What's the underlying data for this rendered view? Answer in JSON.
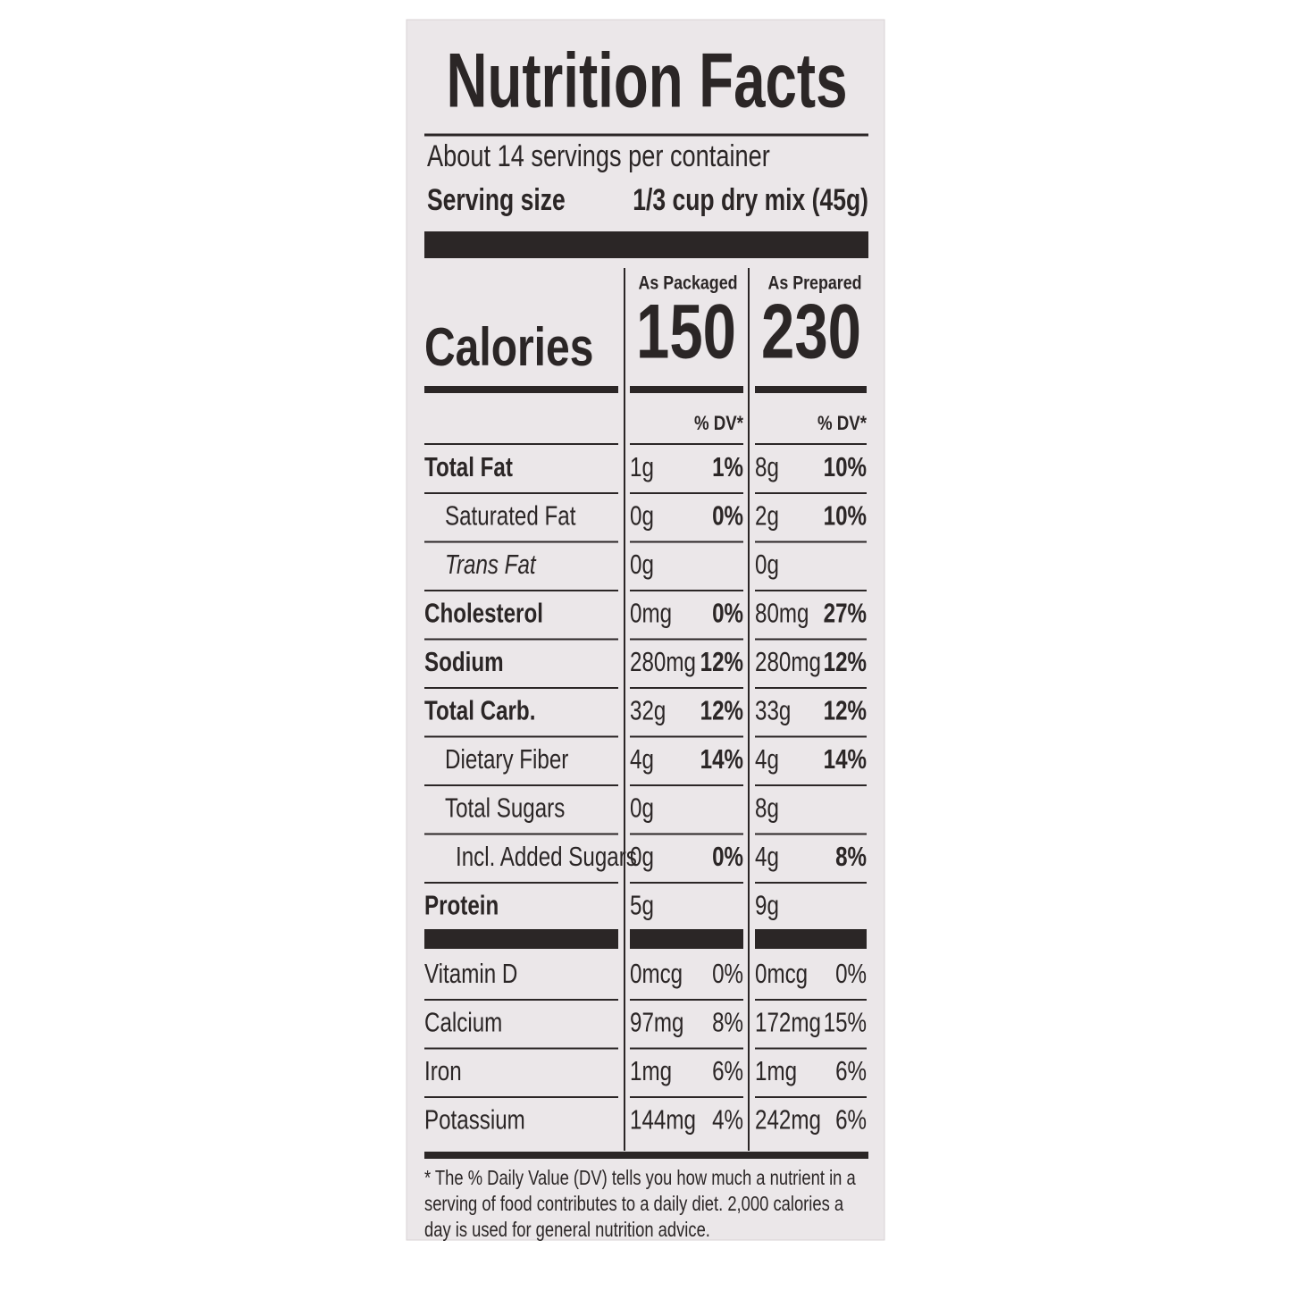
{
  "header": {
    "title": "Nutrition Facts",
    "servings": "About 14 servings per container",
    "serving_size_label": "Serving size",
    "serving_size_value": "1/3 cup dry mix (45g)"
  },
  "columns": [
    "As Packaged",
    "As Prepared"
  ],
  "calories": {
    "label": "Calories",
    "values": [
      "150",
      "230"
    ]
  },
  "dv_header": [
    "% DV*",
    "% DV*"
  ],
  "nutrients": [
    {
      "name": "Total Fat",
      "as_packaged": {
        "amount": "1g",
        "dv": "1%"
      },
      "as_prepared": {
        "amount": "8g",
        "dv": "10%"
      }
    },
    {
      "name": "Saturated Fat",
      "as_packaged": {
        "amount": "0g",
        "dv": "0%"
      },
      "as_prepared": {
        "amount": "2g",
        "dv": "10%"
      }
    },
    {
      "name": "Trans Fat",
      "as_packaged": {
        "amount": "0g"
      },
      "as_prepared": {
        "amount": "0g"
      }
    },
    {
      "name": "Cholesterol",
      "as_packaged": {
        "amount": "0mg",
        "dv": "0%"
      },
      "as_prepared": {
        "amount": "80mg",
        "dv": "27%"
      }
    },
    {
      "name": "Sodium",
      "as_packaged": {
        "amount": "280mg",
        "dv": "12%"
      },
      "as_prepared": {
        "amount": "280mg",
        "dv": "12%"
      }
    },
    {
      "name": "Total Carb.",
      "as_packaged": {
        "amount": "32g",
        "dv": "12%"
      },
      "as_prepared": {
        "amount": "33g",
        "dv": "12%"
      }
    },
    {
      "name": "Dietary Fiber",
      "as_packaged": {
        "amount": "4g",
        "dv": "14%"
      },
      "as_prepared": {
        "amount": "4g",
        "dv": "14%"
      }
    },
    {
      "name": "Total Sugars",
      "as_packaged": {
        "amount": "0g"
      },
      "as_prepared": {
        "amount": "8g"
      }
    },
    {
      "name": "Incl. Added Sugars",
      "as_packaged": {
        "amount": "0g",
        "dv": "0%"
      },
      "as_prepared": {
        "amount": "4g",
        "dv": "8%"
      }
    },
    {
      "name": "Protein",
      "as_packaged": {
        "amount": "5g"
      },
      "as_prepared": {
        "amount": "9g"
      }
    }
  ],
  "vitamins": [
    {
      "name": "Vitamin D",
      "as_packaged": {
        "amount": "0mcg",
        "dv": "0%"
      },
      "as_prepared": {
        "amount": "0mcg",
        "dv": "0%"
      }
    },
    {
      "name": "Calcium",
      "as_packaged": {
        "amount": "97mg",
        "dv": "8%"
      },
      "as_prepared": {
        "amount": "172mg",
        "dv": "15%"
      }
    },
    {
      "name": "Iron",
      "as_packaged": {
        "amount": "1mg",
        "dv": "6%"
      },
      "as_prepared": {
        "amount": "1mg",
        "dv": "6%"
      }
    },
    {
      "name": "Potassium",
      "as_packaged": {
        "amount": "144mg",
        "dv": "4%"
      },
      "as_prepared": {
        "amount": "242mg",
        "dv": "6%"
      }
    }
  ],
  "footnote": [
    "* The % Daily Value (DV) tells you how much a nutrient in a",
    "serving of food contributes to a daily diet. 2,000 calories a",
    "day is used for general nutrition advice."
  ]
}
